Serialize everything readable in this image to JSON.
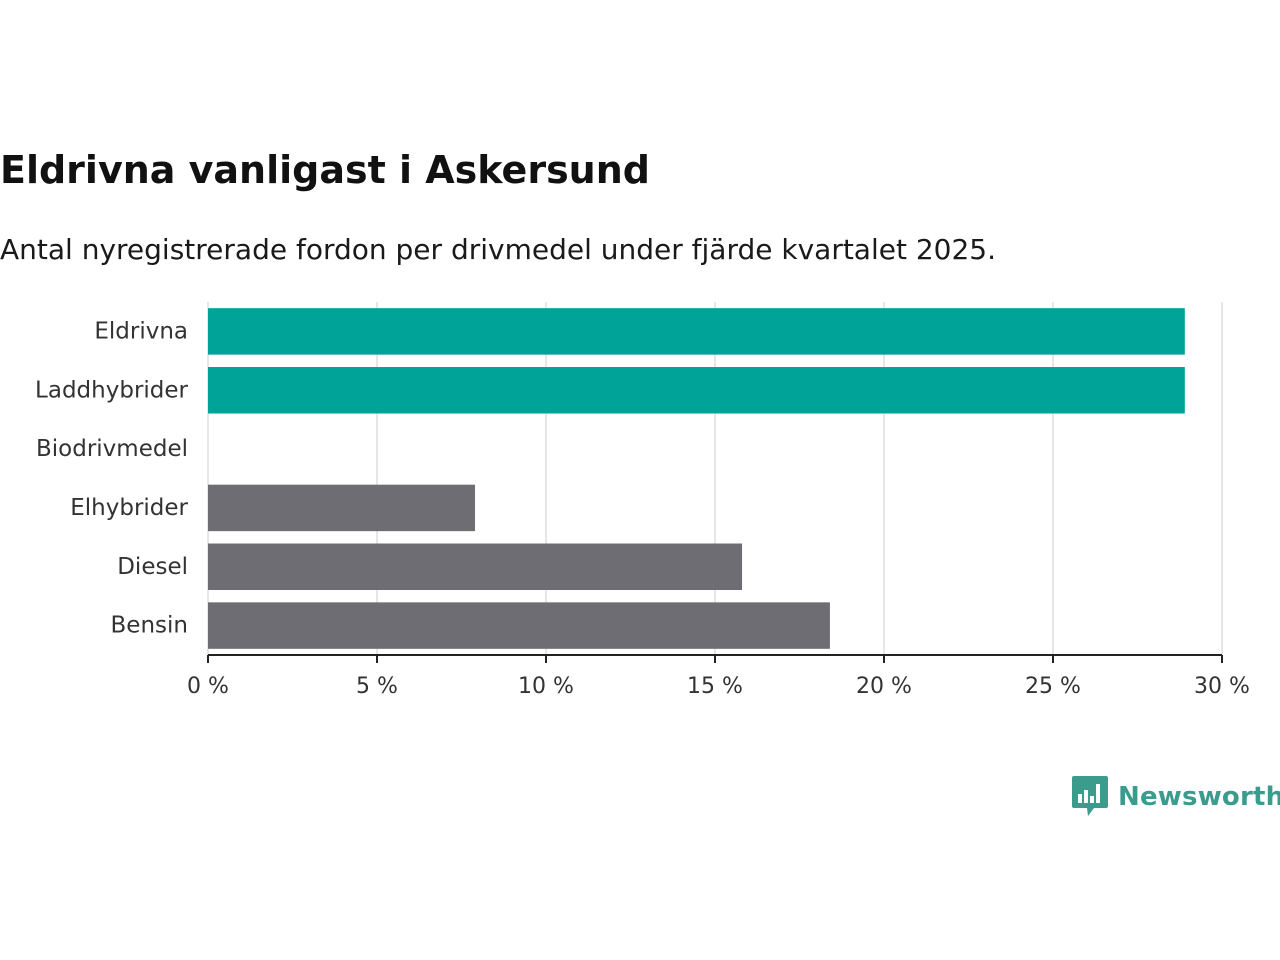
{
  "title": "Eldrivna vanligast i Askersund",
  "subtitle": "Antal nyregistrerade fordon per drivmedel under fjärde kvartalet 2025.",
  "brand": {
    "name": "Newsworthy",
    "icon": "bar-chart-bubble-icon",
    "color": "#3b9c8e"
  },
  "colors": {
    "highlight": "#00a398",
    "default": "#6e6d73",
    "grid": "#dddddd",
    "axis": "#222222",
    "label": "#333333"
  },
  "chart_data": {
    "type": "bar",
    "orientation": "horizontal",
    "categories": [
      "Eldrivna",
      "Laddhybrider",
      "Biodrivmedel",
      "Elhybrider",
      "Diesel",
      "Bensin"
    ],
    "values": [
      28.9,
      28.9,
      0,
      7.9,
      15.8,
      18.4
    ],
    "highlighted": [
      true,
      true,
      true,
      false,
      false,
      false
    ],
    "unit": "%",
    "xlim": [
      0,
      30
    ],
    "xticks": [
      0,
      5,
      10,
      15,
      20,
      25,
      30
    ],
    "xtick_labels": [
      "0 %",
      "5 %",
      "10 %",
      "15 %",
      "20 %",
      "25 %",
      "30 %"
    ],
    "grid": true,
    "title": "Eldrivna vanligast i Askersund",
    "xlabel": "",
    "ylabel": ""
  }
}
